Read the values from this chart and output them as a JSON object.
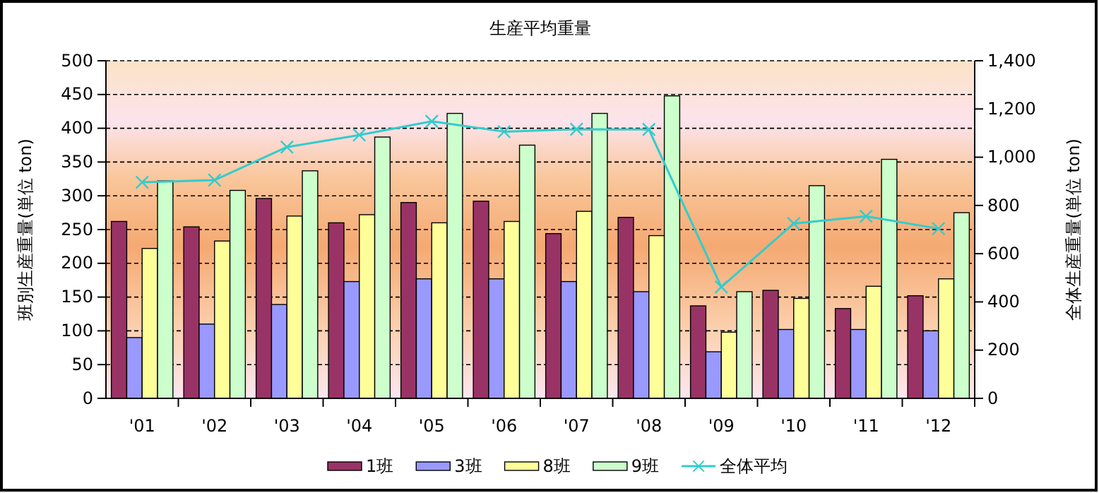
{
  "chart_data": {
    "type": "bar",
    "title": "生産平均重量",
    "ylabel": "班別生産重量(単位 ton)",
    "y2label": "全体生産重量(単位 ton)",
    "categories": [
      "'01",
      "'02",
      "'03",
      "'04",
      "'05",
      "'06",
      "'07",
      "'08",
      "'09",
      "'10",
      "'11",
      "'12"
    ],
    "series": [
      {
        "name": "1班",
        "color": "#993366",
        "values": [
          262,
          254,
          296,
          260,
          290,
          292,
          244,
          268,
          137,
          160,
          133,
          152
        ]
      },
      {
        "name": "3班",
        "color": "#9999ff",
        "values": [
          90,
          110,
          139,
          173,
          177,
          177,
          173,
          158,
          69,
          102,
          102,
          100
        ]
      },
      {
        "name": "8班",
        "color": "#ffff99",
        "values": [
          222,
          233,
          270,
          272,
          260,
          262,
          277,
          241,
          98,
          148,
          166,
          177
        ]
      },
      {
        "name": "9班",
        "color": "#ccffcc",
        "values": [
          322,
          308,
          337,
          387,
          422,
          375,
          422,
          448,
          158,
          315,
          354,
          275
        ]
      },
      {
        "name": "全体平均",
        "type": "line",
        "axis": "y2",
        "color": "#33cccc",
        "marker": "cross",
        "values": [
          896,
          905,
          1042,
          1092,
          1149,
          1106,
          1116,
          1115,
          462,
          725,
          755,
          704
        ]
      }
    ],
    "ylim": [
      0,
      500
    ],
    "yticks": [
      0,
      50,
      100,
      150,
      200,
      250,
      300,
      350,
      400,
      450,
      500
    ],
    "y2lim": [
      0,
      1400
    ],
    "y2ticks": [
      0,
      {
        "value": 200,
        "label": "200"
      },
      {
        "value": 400,
        "label": "400"
      },
      {
        "value": 600,
        "label": "600"
      },
      {
        "value": 800,
        "label": "800"
      },
      {
        "value": 1000,
        "label": "1,000"
      },
      {
        "value": 1200,
        "label": "1,200"
      },
      {
        "value": 1400,
        "label": "1,400"
      }
    ],
    "grid": "y",
    "legend": "bottom"
  }
}
